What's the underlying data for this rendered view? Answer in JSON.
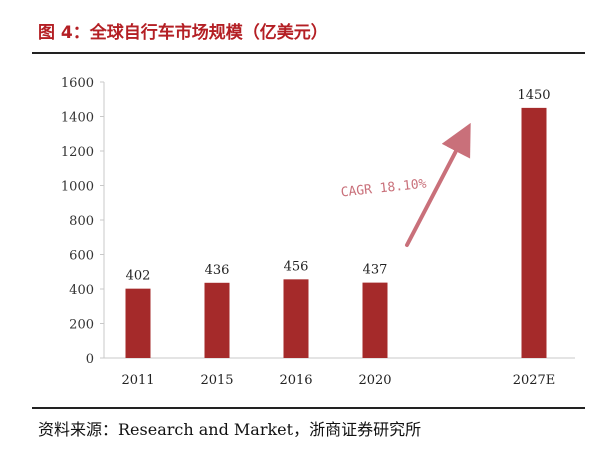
{
  "title": "图 4：全球自行车市场规模（亿美元）",
  "source": "资料来源：Research and Market，浙商证券研究所",
  "annotation": "CAGR 18.10%",
  "colors": {
    "bar": "#a52a2a",
    "title": "#b41f24",
    "annotation": "#c9707a",
    "axis": "#c8c8c8"
  },
  "chart_data": {
    "type": "bar",
    "categories": [
      "2011",
      "2015",
      "2016",
      "2020",
      "2027E"
    ],
    "values": [
      402,
      436,
      456,
      437,
      1450
    ],
    "ylim": [
      0,
      1600
    ],
    "yticks": [
      0,
      200,
      400,
      600,
      800,
      1000,
      1200,
      1400,
      1600
    ],
    "grid": false,
    "legend": "none",
    "data_labels": true
  }
}
